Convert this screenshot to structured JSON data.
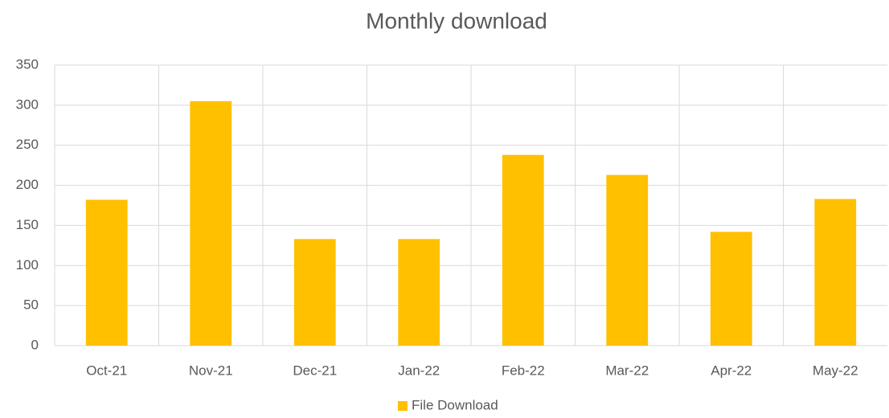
{
  "chart_data": {
    "type": "bar",
    "title": "Monthly download",
    "categories": [
      "Oct-21",
      "Nov-21",
      "Dec-21",
      "Jan-22",
      "Feb-22",
      "Mar-22",
      "Apr-22",
      "May-22"
    ],
    "series": [
      {
        "name": "File Download",
        "color": "#ffc000",
        "values": [
          182,
          305,
          133,
          133,
          238,
          213,
          142,
          183
        ]
      }
    ],
    "ylim": [
      0,
      350
    ],
    "yticks": [
      0,
      50,
      100,
      150,
      200,
      250,
      300,
      350
    ],
    "grid": true,
    "legend": "bottom"
  }
}
